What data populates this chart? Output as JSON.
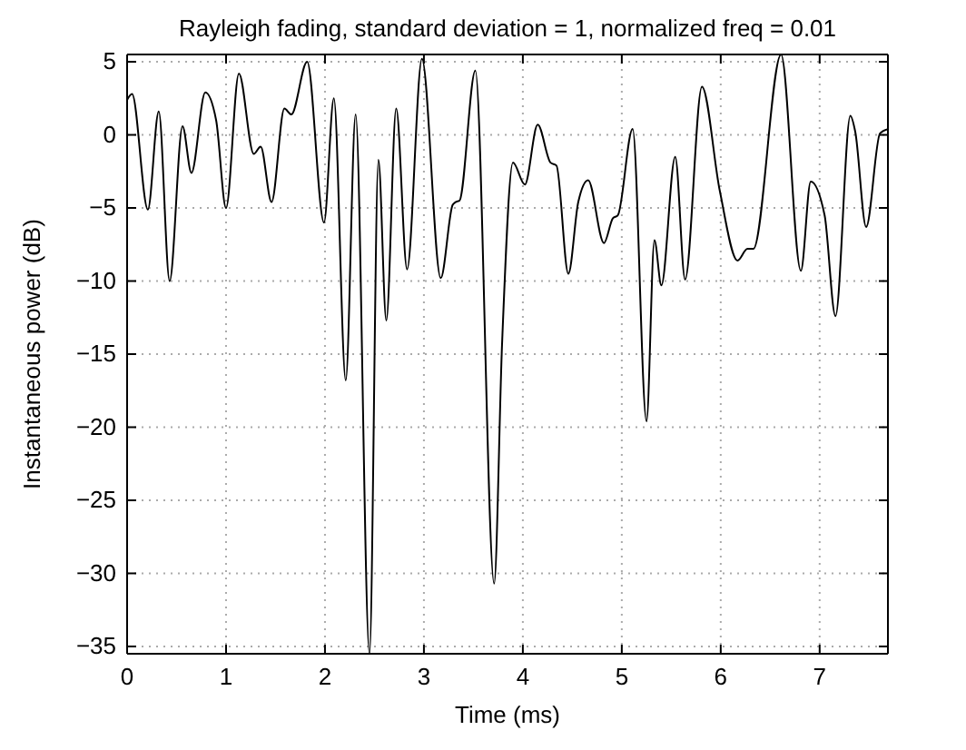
{
  "chart_data": {
    "type": "line",
    "title": "Rayleigh fading, standard deviation = 1, normalized freq = 0.01",
    "xlabel": "Time (ms)",
    "ylabel": "Instantaneous power (dB)",
    "xlim": [
      0,
      7.69
    ],
    "ylim": [
      -35.5,
      5.5
    ],
    "xticks": [
      0,
      1,
      2,
      3,
      4,
      5,
      6,
      7
    ],
    "yticks": [
      -35,
      -30,
      -25,
      -20,
      -15,
      -10,
      -5,
      0,
      5
    ],
    "grid": true,
    "line_style": "solid",
    "marker": "none",
    "series": [
      {
        "color": "#000000",
        "x": [
          0,
          0.05,
          0.21,
          0.32,
          0.43,
          0.56,
          0.65,
          0.79,
          0.9,
          1.0,
          1.13,
          1.28,
          1.35,
          1.46,
          1.59,
          1.66,
          1.82,
          1.99,
          2.09,
          2.21,
          2.31,
          2.45,
          2.54,
          2.62,
          2.72,
          2.83,
          2.98,
          3.17,
          3.29,
          3.32,
          3.36,
          3.52,
          3.71,
          3.79,
          3.9,
          4.02,
          4.15,
          4.28,
          4.34,
          4.46,
          4.56,
          4.66,
          4.82,
          4.91,
          4.96,
          5.11,
          5.25,
          5.33,
          5.4,
          5.54,
          5.64,
          5.81,
          5.99,
          6.17,
          6.27,
          6.33,
          6.61,
          6.81,
          6.91,
          7.05,
          7.16,
          7.31,
          7.36,
          7.47,
          7.61,
          7.69
        ],
        "values": [
          2.4,
          2.8,
          -5.1,
          1.6,
          -10.0,
          0.6,
          -2.6,
          2.9,
          1.0,
          -5.0,
          4.2,
          -1.3,
          -0.8,
          -4.6,
          1.8,
          1.4,
          5.0,
          -6.0,
          2.5,
          -16.8,
          1.4,
          -35.5,
          -1.7,
          -12.7,
          1.8,
          -9.2,
          5.2,
          -9.8,
          -4.8,
          -4.6,
          -4.5,
          4.4,
          -30.7,
          -14.3,
          -1.9,
          -3.4,
          0.7,
          -1.9,
          -2.1,
          -9.5,
          -4.6,
          -3.1,
          -7.4,
          -5.7,
          -5.5,
          0.4,
          -19.6,
          -7.2,
          -10.3,
          -1.5,
          -9.9,
          3.3,
          -3.8,
          -8.6,
          -7.8,
          -7.8,
          5.5,
          -9.3,
          -3.2,
          -5.5,
          -12.4,
          1.3,
          0.2,
          -6.3,
          0.1,
          0.4
        ]
      }
    ]
  }
}
